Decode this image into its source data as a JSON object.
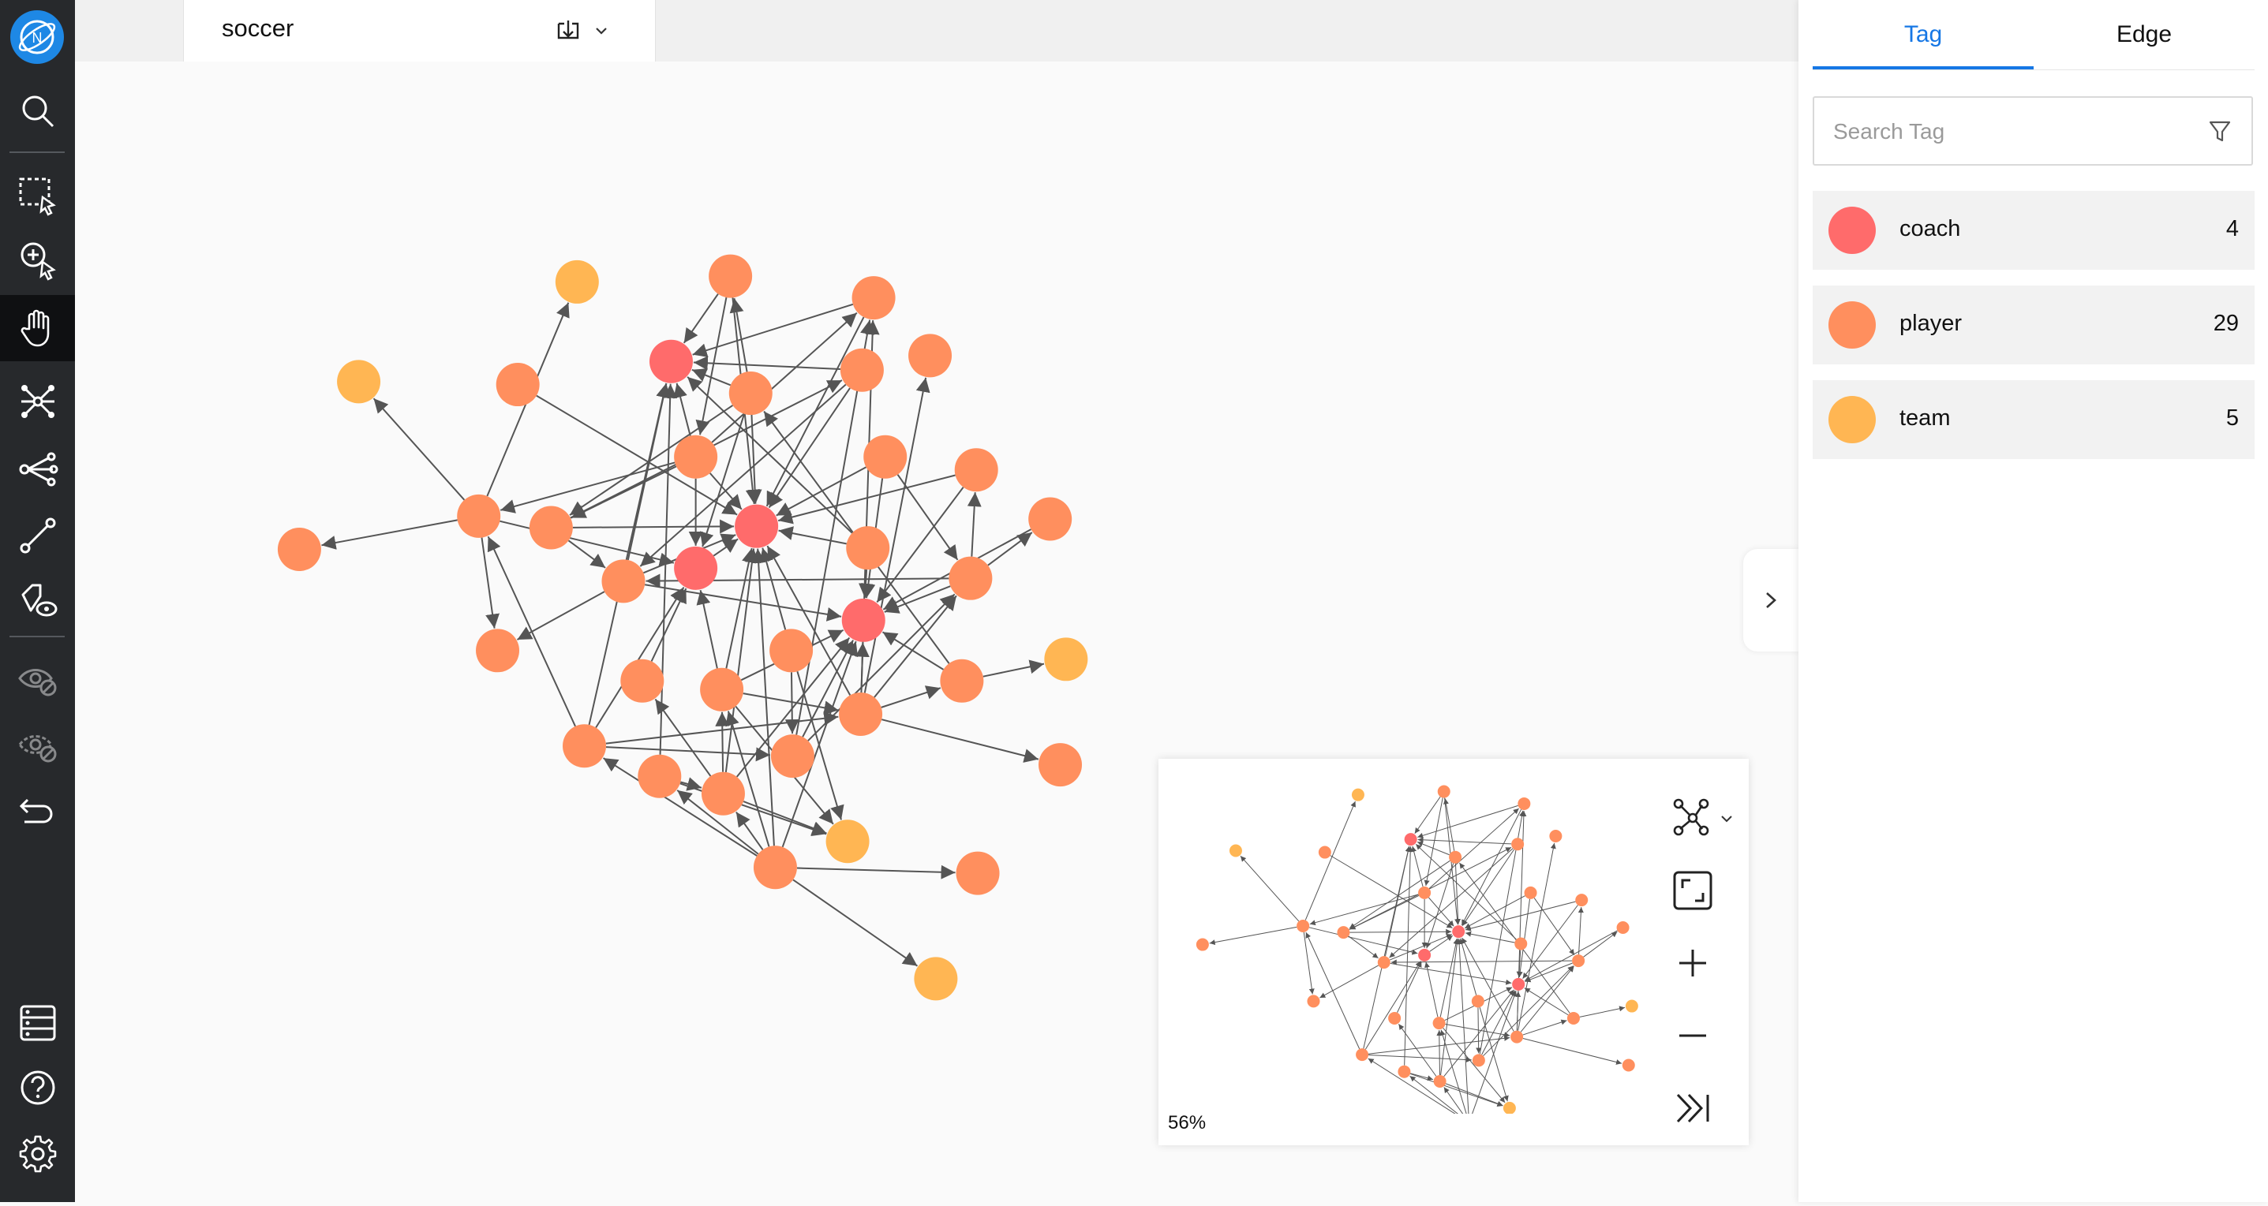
{
  "app": {
    "logo_icon": "nebula-logo-icon",
    "accent": "#1677e5"
  },
  "tab": {
    "title": "soccer",
    "actions_icon": "download-icon"
  },
  "sidebar": {
    "tools": [
      {
        "icon": "search-icon"
      },
      {
        "icon": "select-region-icon"
      },
      {
        "icon": "zoom-select-icon"
      },
      {
        "icon": "hand-pan-icon",
        "active": true
      },
      {
        "icon": "expand-graph-icon"
      },
      {
        "icon": "share-path-icon"
      },
      {
        "icon": "edge-line-icon"
      },
      {
        "icon": "tag-view-icon"
      },
      {
        "icon": "hide-icon",
        "disabled": true
      },
      {
        "icon": "hide-others-icon",
        "disabled": true
      },
      {
        "icon": "undo-icon"
      },
      {
        "icon": "settings-panel-icon"
      },
      {
        "icon": "help-icon"
      },
      {
        "icon": "gear-icon"
      }
    ]
  },
  "panel": {
    "tabs": [
      {
        "label": "Tag",
        "active": true
      },
      {
        "label": "Edge"
      }
    ],
    "search": {
      "placeholder": "Search Tag"
    },
    "tags": [
      {
        "name": "coach",
        "count": "4",
        "color": "#ff6b6b"
      },
      {
        "name": "player",
        "count": "29",
        "color": "#ff8f5e"
      },
      {
        "name": "team",
        "count": "5",
        "color": "#ffb653"
      }
    ]
  },
  "minimap": {
    "zoom": "56%"
  },
  "graph": {
    "colors": {
      "coach": "#ff6b6b",
      "player": "#ff8f5e",
      "team": "#ffb653",
      "edge": "#555555"
    },
    "nodes": [
      [
        "coach",
        464,
        250
      ],
      [
        "coach",
        523,
        364
      ],
      [
        "coach",
        481,
        393
      ],
      [
        "coach",
        597,
        429
      ],
      [
        "team",
        399,
        195
      ],
      [
        "team",
        248,
        264
      ],
      [
        "team",
        737,
        456
      ],
      [
        "team",
        586,
        582
      ],
      [
        "team",
        647,
        677
      ],
      [
        "player",
        505,
        191
      ],
      [
        "player",
        604,
        206
      ],
      [
        "player",
        643,
        246
      ],
      [
        "player",
        596,
        256
      ],
      [
        "player",
        519,
        272
      ],
      [
        "player",
        358,
        266
      ],
      [
        "player",
        481,
        316
      ],
      [
        "player",
        612,
        316
      ],
      [
        "player",
        675,
        325
      ],
      [
        "player",
        726,
        359
      ],
      [
        "player",
        331,
        357
      ],
      [
        "player",
        381,
        365
      ],
      [
        "player",
        207,
        380
      ],
      [
        "player",
        600,
        379
      ],
      [
        "player",
        431,
        402
      ],
      [
        "player",
        671,
        400
      ],
      [
        "player",
        344,
        450
      ],
      [
        "player",
        547,
        450
      ],
      [
        "player",
        444,
        471
      ],
      [
        "player",
        499,
        477
      ],
      [
        "player",
        665,
        471
      ],
      [
        "player",
        595,
        494
      ],
      [
        "player",
        404,
        516
      ],
      [
        "player",
        548,
        523
      ],
      [
        "player",
        733,
        529
      ],
      [
        "player",
        456,
        537
      ],
      [
        "player",
        500,
        549
      ],
      [
        "player",
        536,
        600
      ],
      [
        "player",
        676,
        604
      ]
    ],
    "edges": [
      [
        19,
        4
      ],
      [
        19,
        5
      ],
      [
        19,
        21
      ],
      [
        20,
        1
      ],
      [
        19,
        2
      ],
      [
        15,
        0
      ],
      [
        13,
        0
      ],
      [
        9,
        1
      ],
      [
        10,
        0
      ],
      [
        10,
        1
      ],
      [
        12,
        0
      ],
      [
        12,
        1
      ],
      [
        14,
        1
      ],
      [
        16,
        1
      ],
      [
        17,
        1
      ],
      [
        22,
        1
      ],
      [
        23,
        1
      ],
      [
        26,
        1
      ],
      [
        28,
        1
      ],
      [
        30,
        1
      ],
      [
        36,
        1
      ],
      [
        35,
        1
      ],
      [
        15,
        20
      ],
      [
        15,
        19
      ],
      [
        15,
        2
      ],
      [
        13,
        20
      ],
      [
        13,
        2
      ],
      [
        22,
        0
      ],
      [
        16,
        3
      ],
      [
        17,
        3
      ],
      [
        18,
        3
      ],
      [
        24,
        3
      ],
      [
        29,
        3
      ],
      [
        30,
        3
      ],
      [
        32,
        3
      ],
      [
        35,
        3
      ],
      [
        28,
        3
      ],
      [
        27,
        2
      ],
      [
        28,
        2
      ],
      [
        31,
        2
      ],
      [
        31,
        0
      ],
      [
        34,
        0
      ],
      [
        23,
        25
      ],
      [
        19,
        25
      ],
      [
        31,
        19
      ],
      [
        31,
        30
      ],
      [
        35,
        27
      ],
      [
        36,
        31
      ],
      [
        36,
        34
      ],
      [
        36,
        37
      ],
      [
        36,
        8
      ],
      [
        35,
        7
      ],
      [
        34,
        7
      ],
      [
        30,
        29
      ],
      [
        30,
        33
      ],
      [
        29,
        6
      ],
      [
        30,
        24
      ],
      [
        24,
        17
      ],
      [
        24,
        18
      ],
      [
        32,
        10
      ],
      [
        30,
        10
      ],
      [
        26,
        7
      ],
      [
        28,
        7
      ],
      [
        36,
        3
      ],
      [
        30,
        11
      ],
      [
        15,
        10
      ],
      [
        20,
        12
      ],
      [
        9,
        0
      ],
      [
        9,
        15
      ],
      [
        13,
        9
      ],
      [
        23,
        0
      ],
      [
        22,
        3
      ],
      [
        2,
        1
      ],
      [
        26,
        32
      ],
      [
        36,
        28
      ],
      [
        35,
        28
      ],
      [
        31,
        32
      ],
      [
        34,
        35
      ],
      [
        16,
        24
      ],
      [
        24,
        23
      ],
      [
        32,
        24
      ],
      [
        29,
        13
      ],
      [
        28,
        30
      ],
      [
        36,
        35
      ],
      [
        23,
        3
      ],
      [
        20,
        23
      ],
      [
        13,
        1
      ],
      [
        15,
        1
      ],
      [
        12,
        23
      ]
    ]
  }
}
